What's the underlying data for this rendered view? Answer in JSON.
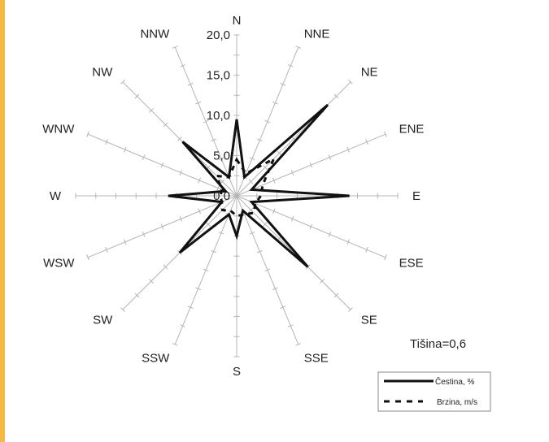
{
  "chart_data": {
    "type": "radar",
    "directions": [
      "N",
      "NNE",
      "NE",
      "ENE",
      "E",
      "ESE",
      "SE",
      "SSE",
      "S",
      "SSW",
      "SW",
      "WSW",
      "W",
      "WNW",
      "NW",
      "NNW"
    ],
    "radial_ticks": [
      "0,0",
      "5,0",
      "10,0",
      "15,0",
      "20,0"
    ],
    "rlim": [
      0,
      20
    ],
    "series": [
      {
        "name": "Čestina, %",
        "style": "solid",
        "color": "#111111",
        "values": [
          9.5,
          2.5,
          16.0,
          2.0,
          14.0,
          2.0,
          12.5,
          2.0,
          5.0,
          2.5,
          10.0,
          2.0,
          8.5,
          1.5,
          9.5,
          2.5
        ]
      },
      {
        "name": "Brzina, m/s",
        "style": "dashed",
        "color": "#111111",
        "values": [
          4.5,
          3.0,
          6.5,
          3.5,
          3.0,
          2.5,
          3.0,
          2.5,
          2.5,
          2.0,
          2.5,
          2.0,
          2.0,
          2.0,
          3.5,
          2.5
        ]
      }
    ],
    "annotation": "Tišina=0,6",
    "legend_position": "bottom-right"
  }
}
